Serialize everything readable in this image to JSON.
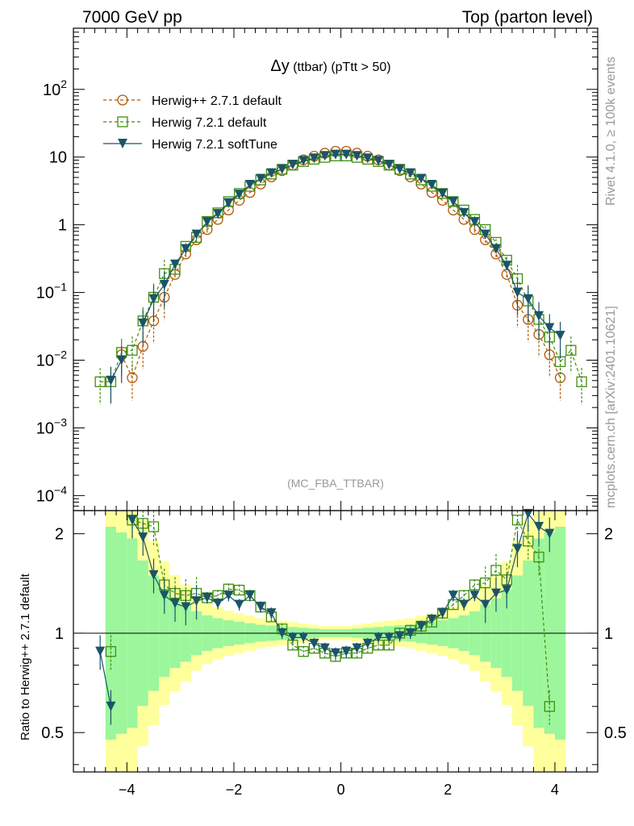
{
  "header": {
    "left": "7000 GeV pp",
    "right": "Top (parton level)"
  },
  "side_labels": {
    "rivet": "Rivet 4.1.0, ≥ 100k events",
    "mcplots": "mcplots.cern.ch [arXiv:2401.10621]"
  },
  "watermark": "(MC_FBA_TTBAR)",
  "colors": {
    "herwigpp": "#b35806",
    "herwig721": "#3f8f0f",
    "softtune": "#1b5468",
    "band_green": "#9cf69c",
    "band_yellow": "#ffff9c"
  },
  "chart_data": {
    "type": "line",
    "title_symbol": "Δy",
    "title_rest": " (ttbar) (pTtt > 50)",
    "xlabel": "",
    "ylabel": "",
    "xlim": [
      -5.0,
      4.8
    ],
    "ylim": [
      6e-05,
      800
    ],
    "yscale": "log",
    "x_ticks": [
      "−4",
      "−2",
      "0",
      "2",
      "4"
    ],
    "x_tick_values": [
      -4,
      -2,
      0,
      2,
      4
    ],
    "y_ticks": [
      {
        "value": 100,
        "base": "10",
        "exp": "2"
      },
      {
        "value": 10,
        "base": "10",
        "exp": ""
      },
      {
        "value": 1,
        "base": "1",
        "exp": ""
      },
      {
        "value": 0.1,
        "base": "10",
        "exp": "−1"
      },
      {
        "value": 0.01,
        "base": "10",
        "exp": "−2"
      },
      {
        "value": 0.001,
        "base": "10",
        "exp": "−3"
      },
      {
        "value": 0.0001,
        "base": "10",
        "exp": "−4"
      }
    ],
    "legend_position": "top-left",
    "x": [
      -4.5,
      -4.3,
      -4.1,
      -3.9,
      -3.7,
      -3.5,
      -3.3,
      -3.1,
      -2.9,
      -2.7,
      -2.5,
      -2.3,
      -2.1,
      -1.9,
      -1.7,
      -1.5,
      -1.3,
      -1.1,
      -0.9,
      -0.7,
      -0.5,
      -0.3,
      -0.1,
      0.1,
      0.3,
      0.5,
      0.7,
      0.9,
      1.1,
      1.3,
      1.5,
      1.7,
      1.9,
      2.1,
      2.3,
      2.5,
      2.7,
      2.9,
      3.1,
      3.3,
      3.5,
      3.7,
      3.9,
      4.1,
      4.3,
      4.5
    ],
    "series": [
      {
        "name": "Herwig++ 2.7.1 default",
        "marker": "circle",
        "style": "dashed",
        "values": [
          null,
          null,
          0.012,
          0.0055,
          0.016,
          0.038,
          0.085,
          0.185,
          0.37,
          0.6,
          0.85,
          1.2,
          1.65,
          2.3,
          3.0,
          4.0,
          5.1,
          6.3,
          7.6,
          9.1,
          10.3,
          11.4,
          12.2,
          12.2,
          11.4,
          10.3,
          9.1,
          7.6,
          6.3,
          5.1,
          4.0,
          3.0,
          2.3,
          1.65,
          1.2,
          0.85,
          0.6,
          0.37,
          0.185,
          0.065,
          0.04,
          0.024,
          0.012,
          0.0055,
          null,
          null
        ]
      },
      {
        "name": "Herwig 7.2.1 default",
        "marker": "square",
        "style": "dashed",
        "values": [
          0.0048,
          0.0048,
          0.013,
          0.014,
          0.038,
          0.085,
          0.19,
          0.22,
          0.48,
          0.65,
          1.12,
          1.5,
          2.2,
          2.9,
          3.7,
          4.6,
          5.6,
          6.6,
          7.6,
          8.6,
          9.3,
          9.9,
          10.4,
          10.4,
          9.9,
          9.3,
          8.6,
          7.6,
          6.6,
          5.6,
          4.6,
          3.7,
          2.9,
          2.2,
          1.65,
          1.2,
          0.85,
          0.55,
          0.3,
          0.16,
          0.075,
          0.04,
          0.022,
          0.0095,
          0.014,
          0.0048
        ]
      },
      {
        "name": "Herwig 7.2.1 softTune",
        "marker": "triangle-down",
        "style": "solid",
        "values": [
          null,
          0.005,
          0.01,
          null,
          0.035,
          0.08,
          0.13,
          0.26,
          0.44,
          0.72,
          1.1,
          1.45,
          2.1,
          2.8,
          3.9,
          4.8,
          5.8,
          6.6,
          7.7,
          8.8,
          9.6,
          10.4,
          10.9,
          10.9,
          10.4,
          9.6,
          8.8,
          7.7,
          6.6,
          5.8,
          4.8,
          3.9,
          2.9,
          2.2,
          1.5,
          1.1,
          0.72,
          0.44,
          0.25,
          0.1,
          0.08,
          0.045,
          0.03,
          0.023,
          null,
          null
        ]
      }
    ],
    "ratio": {
      "ylabel": "Ratio to Herwig++ 2.7.1 default",
      "ylim": [
        0.38,
        2.35
      ],
      "yscale": "log",
      "y_ticks": [
        "0.5",
        "1",
        "2"
      ],
      "y_tick_values": [
        0.5,
        1,
        2
      ],
      "band_half_widths": [
        2,
        1.85,
        1.7,
        1.2,
        0.9,
        0.65,
        0.5,
        0.4,
        0.3,
        0.24,
        0.2,
        0.17,
        0.15,
        0.13,
        0.11,
        0.1,
        0.09,
        0.08,
        0.07,
        0.06,
        0.05,
        0.05
      ],
      "series": [
        {
          "name": "Herwig 7.2.1 default",
          "values": [
            null,
            0.88,
            null,
            2.2,
            2.15,
            2.1,
            1.4,
            1.32,
            1.3,
            1.32,
            1.28,
            1.3,
            1.36,
            1.35,
            1.3,
            1.2,
            1.12,
            1.03,
            0.92,
            0.88,
            0.9,
            0.87,
            0.85,
            0.87,
            0.87,
            0.9,
            0.92,
            0.92,
            1.0,
            1.02,
            1.05,
            1.08,
            1.15,
            1.22,
            1.3,
            1.4,
            1.42,
            1.55,
            1.45,
            2.2,
            1.9,
            1.7,
            0.6,
            null,
            null,
            null
          ]
        },
        {
          "name": "Herwig 7.2.1 softTune",
          "values": [
            0.88,
            0.6,
            null,
            2.2,
            1.95,
            1.5,
            1.3,
            1.23,
            1.2,
            1.25,
            1.28,
            1.23,
            1.3,
            1.22,
            1.3,
            1.2,
            1.15,
            1.0,
            0.97,
            0.97,
            0.93,
            0.9,
            0.87,
            0.88,
            0.9,
            0.93,
            0.97,
            0.97,
            0.98,
            1.0,
            1.05,
            1.1,
            1.15,
            1.3,
            1.22,
            1.3,
            1.22,
            1.32,
            1.35,
            1.8,
            2.3,
            2.1,
            2.0,
            null,
            null,
            null
          ]
        }
      ]
    }
  }
}
